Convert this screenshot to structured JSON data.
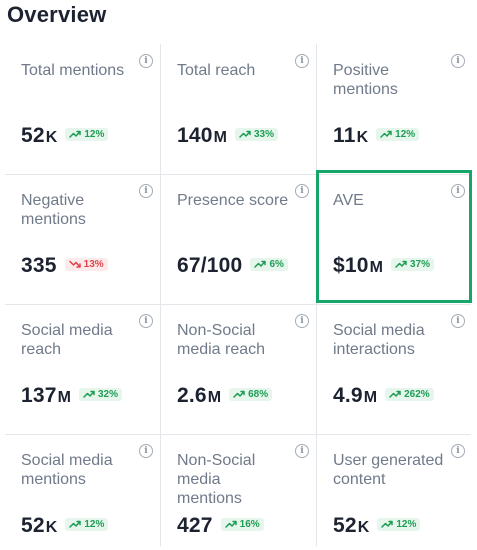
{
  "title": "Overview",
  "cards": [
    {
      "label": "Total mentions",
      "value": "52",
      "unit": "K",
      "change": "12%",
      "trend": "up"
    },
    {
      "label": "Total reach",
      "value": "140",
      "unit": "M",
      "change": "33%",
      "trend": "up"
    },
    {
      "label": "Positive mentions",
      "value": "11",
      "unit": "K",
      "change": "12%",
      "trend": "up"
    },
    {
      "label": "Negative mentions",
      "value": "335",
      "unit": "",
      "change": "13%",
      "trend": "down"
    },
    {
      "label": "Presence score",
      "value": "67/100",
      "unit": "",
      "change": "6%",
      "trend": "up"
    },
    {
      "label": "AVE",
      "value": "$10",
      "unit": "M",
      "change": "37%",
      "trend": "up"
    },
    {
      "label": "Social media reach",
      "value": "137",
      "unit": "M",
      "change": "32%",
      "trend": "up"
    },
    {
      "label": "Non-Social media reach",
      "value": "2.6",
      "unit": "M",
      "change": "68%",
      "trend": "up"
    },
    {
      "label": "Social media interactions",
      "value": "4.9",
      "unit": "M",
      "change": "262%",
      "trend": "up"
    },
    {
      "label": "Social media mentions",
      "value": "52",
      "unit": "K",
      "change": "12%",
      "trend": "up"
    },
    {
      "label": "Non-Social media mentions",
      "value": "427",
      "unit": "",
      "change": "16%",
      "trend": "up"
    },
    {
      "label": "User generated content",
      "value": "52",
      "unit": "K",
      "change": "12%",
      "trend": "up"
    }
  ],
  "info_icon": "info-icon",
  "colors": {
    "up": "#1f9d55",
    "down": "#e0454a",
    "highlight": "#16a66a"
  },
  "highlighted_card": "AVE"
}
